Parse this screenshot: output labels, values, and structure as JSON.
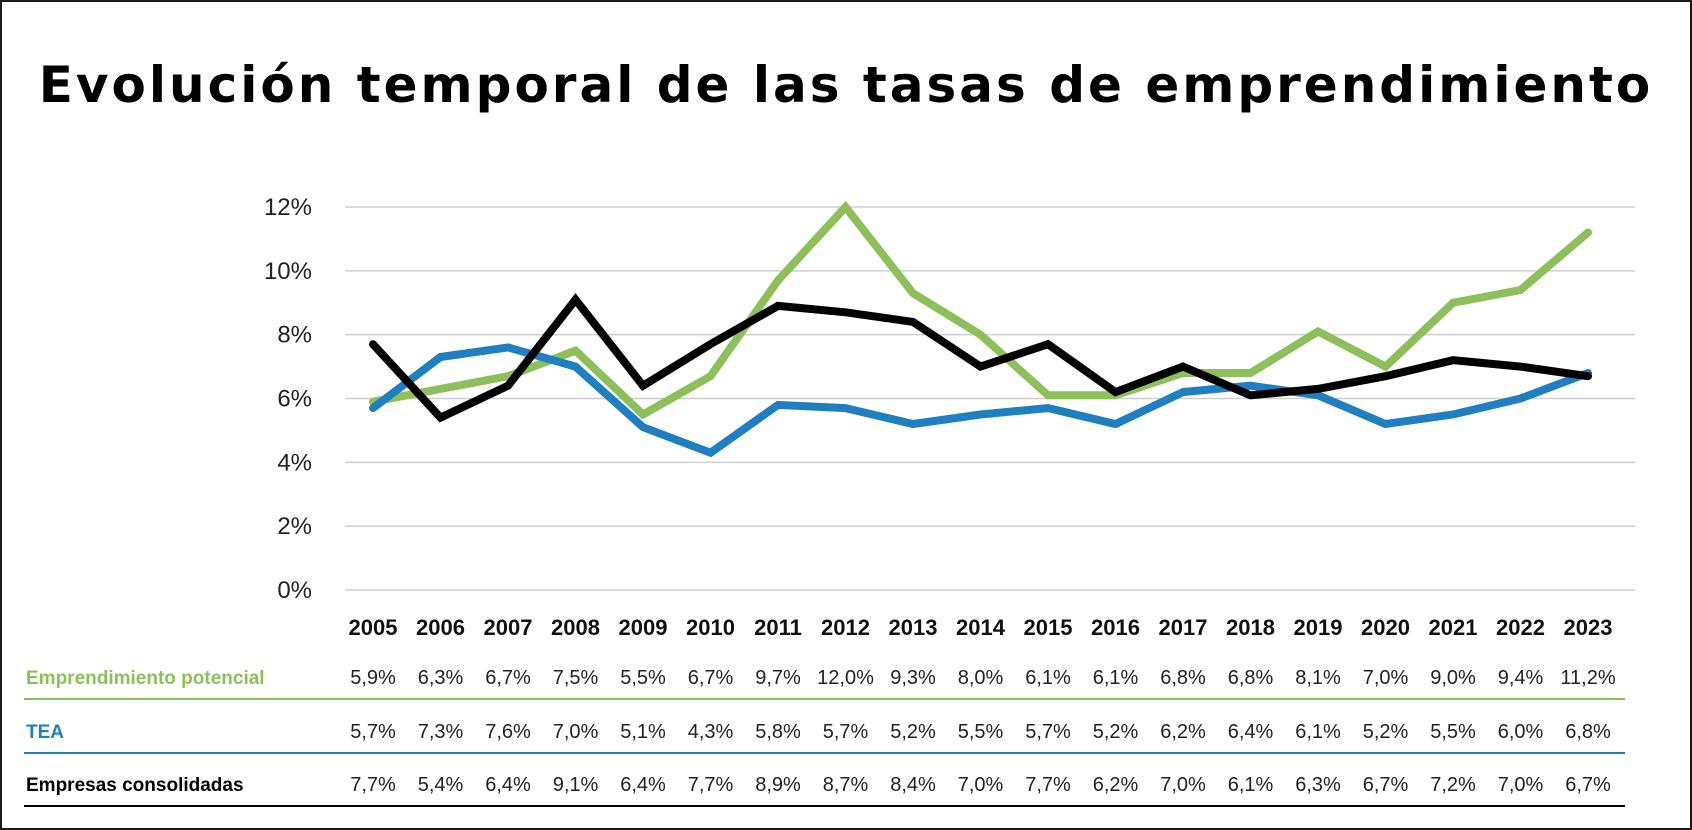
{
  "chart_data": {
    "type": "line",
    "title": "Evolución temporal de las tasas de emprendimiento",
    "x": [
      "2005",
      "2006",
      "2007",
      "2008",
      "2009",
      "2010",
      "2011",
      "2012",
      "2013",
      "2014",
      "2015",
      "2016",
      "2017",
      "2018",
      "2019",
      "2020",
      "2021",
      "2022",
      "2023"
    ],
    "ylim": [
      0,
      12
    ],
    "yticks": [
      0,
      2,
      4,
      6,
      8,
      10,
      12
    ],
    "ytick_labels": [
      "0%",
      "2%",
      "4%",
      "6%",
      "8%",
      "10%",
      "12%"
    ],
    "grid": "horizontal",
    "series": [
      {
        "name": "Emprendimiento potencial",
        "color": "#8dc05a",
        "values": [
          5.9,
          6.3,
          6.7,
          7.5,
          5.5,
          6.7,
          9.7,
          12.0,
          9.3,
          8.0,
          6.1,
          6.1,
          6.8,
          6.8,
          8.1,
          7.0,
          9.0,
          9.4,
          11.2
        ],
        "labels": [
          "5,9%",
          "6,3%",
          "6,7%",
          "7,5%",
          "5,5%",
          "6,7%",
          "9,7%",
          "12,0%",
          "9,3%",
          "8,0%",
          "6,1%",
          "6,1%",
          "6,8%",
          "6,8%",
          "8,1%",
          "7,0%",
          "9,0%",
          "9,4%",
          "11,2%"
        ]
      },
      {
        "name": "TEA",
        "color": "#1f7fc1",
        "values": [
          5.7,
          7.3,
          7.6,
          7.0,
          5.1,
          4.3,
          5.8,
          5.7,
          5.2,
          5.5,
          5.7,
          5.2,
          6.2,
          6.4,
          6.1,
          5.2,
          5.5,
          6.0,
          6.8
        ],
        "labels": [
          "5,7%",
          "7,3%",
          "7,6%",
          "7,0%",
          "5,1%",
          "4,3%",
          "5,8%",
          "5,7%",
          "5,2%",
          "5,5%",
          "5,7%",
          "5,2%",
          "6,2%",
          "6,4%",
          "6,1%",
          "5,2%",
          "5,5%",
          "6,0%",
          "6,8%"
        ]
      },
      {
        "name": "Empresas consolidadas",
        "color": "#000000",
        "values": [
          7.7,
          5.4,
          6.4,
          9.1,
          6.4,
          7.7,
          8.9,
          8.7,
          8.4,
          7.0,
          7.7,
          6.2,
          7.0,
          6.1,
          6.3,
          6.7,
          7.2,
          7.0,
          6.7
        ],
        "labels": [
          "7,7%",
          "5,4%",
          "6,4%",
          "9,1%",
          "6,4%",
          "7,7%",
          "8,9%",
          "8,7%",
          "8,4%",
          "7,0%",
          "7,7%",
          "6,2%",
          "7,0%",
          "6,1%",
          "6,3%",
          "6,7%",
          "7,2%",
          "7,0%",
          "6,7%"
        ]
      }
    ]
  }
}
